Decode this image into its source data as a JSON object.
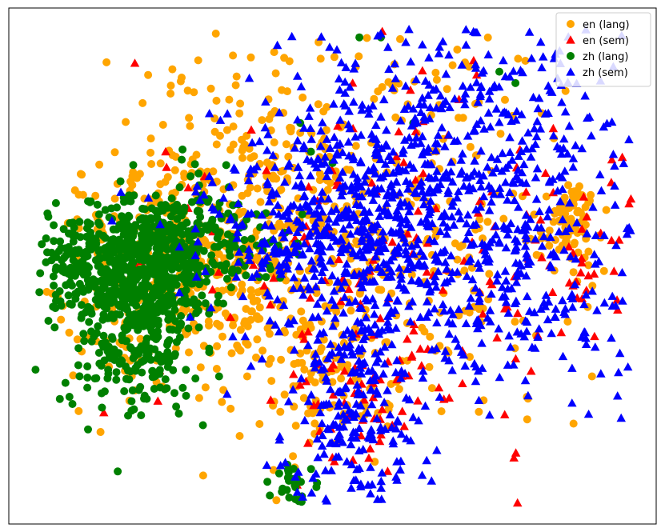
{
  "chart_data": {
    "type": "scatter",
    "title": "",
    "xlabel": "",
    "ylabel": "",
    "xlim": [
      -60,
      60
    ],
    "ylim": [
      -45,
      45
    ],
    "grid": false,
    "ticks": false,
    "legend_position": "top-right",
    "series": [
      {
        "name": "en (lang)",
        "marker": "circle",
        "color": "#ffa500",
        "clusters": [
          {
            "center": [
              -28,
              2
            ],
            "spread": [
              13,
              12
            ],
            "count": 420
          },
          {
            "center": [
              -8,
              5
            ],
            "spread": [
              12,
              14
            ],
            "count": 160
          },
          {
            "center": [
              10,
              8
            ],
            "spread": [
              22,
              18
            ],
            "count": 360
          },
          {
            "center": [
              44,
              7
            ],
            "spread": [
              2,
              3
            ],
            "count": 70
          },
          {
            "center": [
              0,
              -22
            ],
            "spread": [
              5,
              6
            ],
            "count": 60
          }
        ]
      },
      {
        "name": "en (sem)",
        "marker": "triangle",
        "color": "#ff0000",
        "clusters": [
          {
            "center": [
              12,
              5
            ],
            "spread": [
              22,
              18
            ],
            "count": 150
          },
          {
            "center": [
              6,
              -23
            ],
            "spread": [
              6,
              7
            ],
            "count": 50
          },
          {
            "center": [
              46,
              0
            ],
            "spread": [
              7,
              8
            ],
            "count": 30
          }
        ],
        "points": [
          [
            -31,
            20
          ],
          [
            56,
            -2
          ],
          [
            32,
            -26
          ]
        ]
      },
      {
        "name": "zh (lang)",
        "marker": "circle",
        "color": "#008000",
        "clusters": [
          {
            "center": [
              -34,
              2
            ],
            "spread": [
              9,
              5
            ],
            "count": 500
          },
          {
            "center": [
              -37,
              -10
            ],
            "spread": [
              6,
              8
            ],
            "count": 380
          },
          {
            "center": [
              -48,
              0
            ],
            "spread": [
              5,
              4
            ],
            "count": 80
          },
          {
            "center": [
              -20,
              5
            ],
            "spread": [
              6,
              6
            ],
            "count": 70
          },
          {
            "center": [
              -7,
              -38
            ],
            "spread": [
              2,
              2
            ],
            "count": 30
          }
        ],
        "points": [
          [
            5,
            40
          ],
          [
            9,
            40
          ],
          [
            -6,
            25
          ],
          [
            -4,
            20
          ],
          [
            0,
            18
          ],
          [
            15,
            25
          ],
          [
            31,
            34
          ],
          [
            34,
            32
          ]
        ]
      },
      {
        "name": "zh (sem)",
        "marker": "triangle",
        "color": "#0000ff",
        "clusters": [
          {
            "center": [
              2,
              7
            ],
            "spread": [
              13,
              10
            ],
            "count": 520
          },
          {
            "center": [
              22,
              22
            ],
            "spread": [
              15,
              13
            ],
            "count": 420
          },
          {
            "center": [
              34,
              -2
            ],
            "spread": [
              15,
              10
            ],
            "count": 260
          },
          {
            "center": [
              4,
              -24
            ],
            "spread": [
              6,
              9
            ],
            "count": 220
          }
        ],
        "points": [
          [
            -6,
            -44
          ],
          [
            52,
            -7
          ],
          [
            58,
            2
          ]
        ]
      }
    ]
  }
}
